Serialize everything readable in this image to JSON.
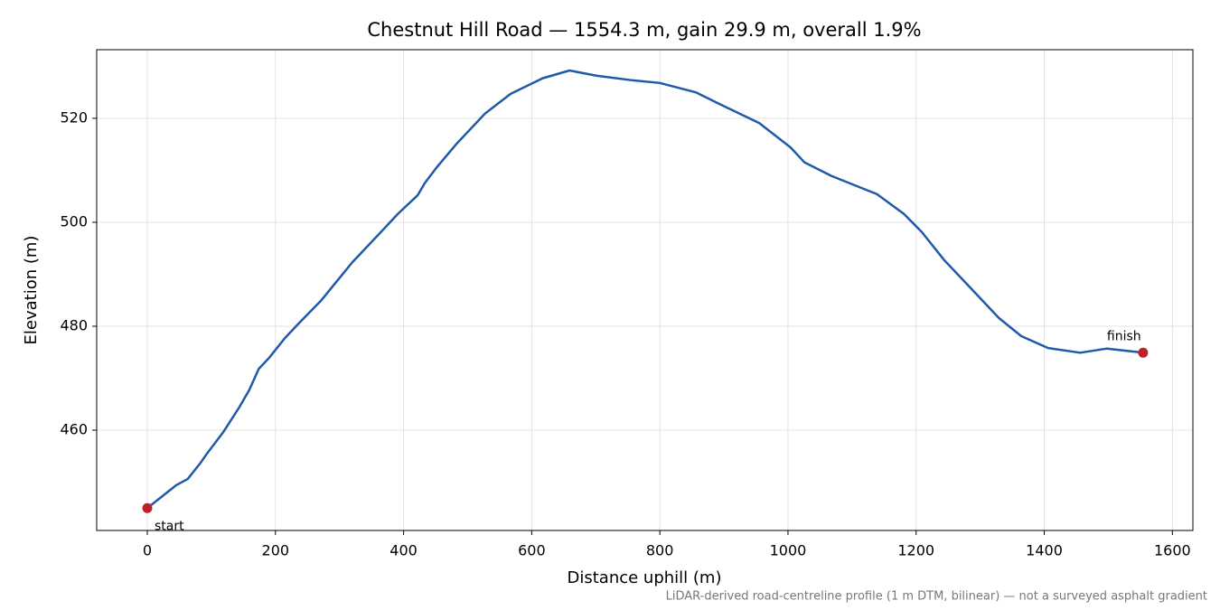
{
  "chart_data": {
    "type": "line",
    "title": "Chestnut Hill Road — 1554.3 m, gain 29.9 m, overall 1.9%",
    "x_label": "Distance uphill (m)",
    "y_label": "Elevation (m)",
    "footnote": "LiDAR-derived road-centreline profile (1 m DTM, bilinear) — not a surveyed asphalt gradient",
    "x": [
      0,
      45,
      63,
      83,
      92,
      119,
      144,
      159,
      174,
      190,
      214,
      236,
      271,
      320,
      363,
      391,
      422,
      433,
      450,
      482,
      527,
      567,
      617,
      659,
      701,
      758,
      800,
      856,
      899,
      955,
      1004,
      1026,
      1068,
      1139,
      1181,
      1209,
      1244,
      1287,
      1329,
      1364,
      1406,
      1456,
      1498,
      1554.3
    ],
    "series": [
      {
        "color": "#1f5aa8",
        "values": [
          445.0,
          449.4,
          450.6,
          453.7,
          455.3,
          459.7,
          464.5,
          467.7,
          471.8,
          473.9,
          477.6,
          480.5,
          484.9,
          492.3,
          497.9,
          501.6,
          505.2,
          507.5,
          510.3,
          515.0,
          520.9,
          524.7,
          527.7,
          529.2,
          528.2,
          527.3,
          526.8,
          525.0,
          522.4,
          519.1,
          514.4,
          511.5,
          508.9,
          505.4,
          501.6,
          498.1,
          492.7,
          487.1,
          481.6,
          478.1,
          475.8,
          474.9,
          475.7,
          474.9
        ]
      }
    ],
    "points": [
      {
        "label": "start",
        "x": 0,
        "y": 445.0
      },
      {
        "label": "finish",
        "x": 1554.3,
        "y": 474.9
      }
    ],
    "point_color": "#c0202a",
    "xlim": [
      -79,
      1632
    ],
    "ylim": [
      440.7,
      533.2
    ],
    "xticks": [
      0,
      200,
      400,
      600,
      800,
      1000,
      1200,
      1400,
      1600
    ],
    "yticks": [
      460,
      480,
      500,
      520
    ],
    "grid": true
  }
}
